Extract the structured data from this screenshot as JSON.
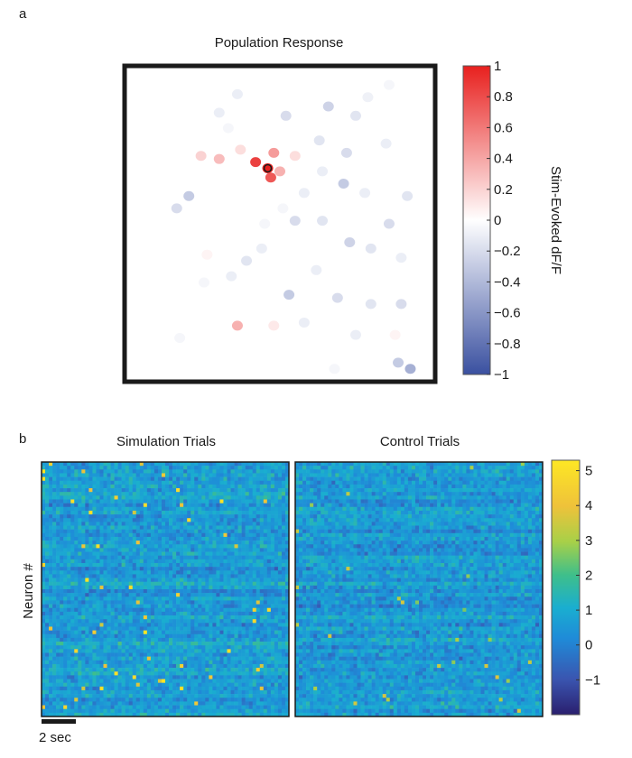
{
  "chart_data": [
    {
      "panel_label": "a",
      "type": "heatmap",
      "title": "Population Response",
      "colorbar": {
        "label": "Stim-Evoked dF/F",
        "range": [
          -1,
          1
        ],
        "ticks": [
          "1",
          "0.8",
          "0.6",
          "0.4",
          "0.2",
          "0",
          "−0.2",
          "−0.4",
          "−0.6",
          "−0.8",
          "−1"
        ],
        "tick_values": [
          1,
          0.8,
          0.6,
          0.4,
          0.2,
          0,
          -0.2,
          -0.4,
          -0.6,
          -0.8,
          -1
        ],
        "colors": {
          "low": "#3a50a0",
          "mid": "#ffffff",
          "high": "#e8201e"
        }
      },
      "neurons": [
        {
          "x": 0.46,
          "y": 0.32,
          "v": 1.0,
          "target": true
        },
        {
          "x": 0.42,
          "y": 0.3,
          "v": 0.85
        },
        {
          "x": 0.47,
          "y": 0.35,
          "v": 0.75
        },
        {
          "x": 0.48,
          "y": 0.27,
          "v": 0.45
        },
        {
          "x": 0.5,
          "y": 0.33,
          "v": 0.35
        },
        {
          "x": 0.3,
          "y": 0.29,
          "v": 0.3
        },
        {
          "x": 0.24,
          "y": 0.28,
          "v": 0.2
        },
        {
          "x": 0.37,
          "y": 0.26,
          "v": 0.15
        },
        {
          "x": 0.55,
          "y": 0.28,
          "v": 0.15
        },
        {
          "x": 0.2,
          "y": 0.41,
          "v": -0.3
        },
        {
          "x": 0.16,
          "y": 0.45,
          "v": -0.2
        },
        {
          "x": 0.3,
          "y": 0.14,
          "v": -0.1
        },
        {
          "x": 0.36,
          "y": 0.08,
          "v": -0.1
        },
        {
          "x": 0.52,
          "y": 0.15,
          "v": -0.2
        },
        {
          "x": 0.66,
          "y": 0.12,
          "v": -0.25
        },
        {
          "x": 0.75,
          "y": 0.15,
          "v": -0.15
        },
        {
          "x": 0.86,
          "y": 0.05,
          "v": -0.05
        },
        {
          "x": 0.79,
          "y": 0.09,
          "v": -0.08
        },
        {
          "x": 0.33,
          "y": 0.19,
          "v": -0.05
        },
        {
          "x": 0.63,
          "y": 0.23,
          "v": -0.15
        },
        {
          "x": 0.72,
          "y": 0.27,
          "v": -0.2
        },
        {
          "x": 0.85,
          "y": 0.24,
          "v": -0.1
        },
        {
          "x": 0.64,
          "y": 0.33,
          "v": -0.1
        },
        {
          "x": 0.71,
          "y": 0.37,
          "v": -0.3
        },
        {
          "x": 0.58,
          "y": 0.4,
          "v": -0.1
        },
        {
          "x": 0.55,
          "y": 0.49,
          "v": -0.2
        },
        {
          "x": 0.64,
          "y": 0.49,
          "v": -0.15
        },
        {
          "x": 0.86,
          "y": 0.5,
          "v": -0.2
        },
        {
          "x": 0.44,
          "y": 0.58,
          "v": -0.1
        },
        {
          "x": 0.39,
          "y": 0.62,
          "v": -0.15
        },
        {
          "x": 0.73,
          "y": 0.56,
          "v": -0.25
        },
        {
          "x": 0.8,
          "y": 0.58,
          "v": -0.15
        },
        {
          "x": 0.9,
          "y": 0.61,
          "v": -0.1
        },
        {
          "x": 0.62,
          "y": 0.65,
          "v": -0.1
        },
        {
          "x": 0.34,
          "y": 0.67,
          "v": -0.1
        },
        {
          "x": 0.25,
          "y": 0.69,
          "v": -0.05
        },
        {
          "x": 0.53,
          "y": 0.73,
          "v": -0.3
        },
        {
          "x": 0.69,
          "y": 0.74,
          "v": -0.2
        },
        {
          "x": 0.8,
          "y": 0.76,
          "v": -0.15
        },
        {
          "x": 0.9,
          "y": 0.76,
          "v": -0.2
        },
        {
          "x": 0.36,
          "y": 0.83,
          "v": 0.35
        },
        {
          "x": 0.48,
          "y": 0.83,
          "v": 0.1
        },
        {
          "x": 0.58,
          "y": 0.82,
          "v": -0.1
        },
        {
          "x": 0.75,
          "y": 0.86,
          "v": -0.1
        },
        {
          "x": 0.17,
          "y": 0.87,
          "v": -0.05
        },
        {
          "x": 0.88,
          "y": 0.86,
          "v": 0.05
        },
        {
          "x": 0.93,
          "y": 0.97,
          "v": -0.45
        },
        {
          "x": 0.89,
          "y": 0.95,
          "v": -0.3
        },
        {
          "x": 0.68,
          "y": 0.97,
          "v": -0.05
        },
        {
          "x": 0.45,
          "y": 0.5,
          "v": -0.05
        },
        {
          "x": 0.51,
          "y": 0.45,
          "v": -0.05
        },
        {
          "x": 0.26,
          "y": 0.6,
          "v": 0.05
        },
        {
          "x": 0.78,
          "y": 0.4,
          "v": -0.1
        },
        {
          "x": 0.92,
          "y": 0.41,
          "v": -0.15
        }
      ]
    },
    {
      "panel_label": "b",
      "type": "heatmap",
      "panels": [
        "Simulation Trials",
        "Control Trials"
      ],
      "ylabel": "Neuron #",
      "scale_bar": "2 sec",
      "colorbar": {
        "range": [
          -2,
          5.3
        ],
        "ticks": [
          "5",
          "4",
          "3",
          "2",
          "1",
          "0",
          "−1"
        ],
        "tick_values": [
          5,
          4,
          3,
          2,
          1,
          0,
          -1
        ]
      }
    }
  ]
}
